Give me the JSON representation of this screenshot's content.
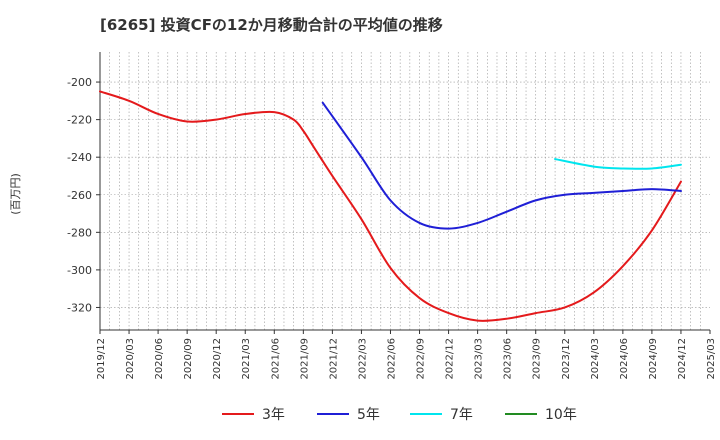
{
  "chart_data": {
    "type": "line",
    "title": "[6265]  投資CFの12か月移動合計の平均値の推移",
    "ylabel": "(百万円)",
    "xlabel": "",
    "ylim": [
      -332,
      -184
    ],
    "yticks": [
      -200,
      -220,
      -240,
      -260,
      -280,
      -300,
      -320
    ],
    "xticks": [
      "2019/12",
      "2020/03",
      "2020/06",
      "2020/09",
      "2020/12",
      "2021/03",
      "2021/06",
      "2021/09",
      "2021/12",
      "2022/03",
      "2022/06",
      "2022/09",
      "2022/12",
      "2023/03",
      "2023/06",
      "2023/09",
      "2023/12",
      "2024/03",
      "2024/06",
      "2024/09",
      "2024/12",
      "2025/03"
    ],
    "grid": true,
    "legend_position": "bottom",
    "series": [
      {
        "name": "3年",
        "color": "#e41a1c",
        "x": [
          "2019/12",
          "2020/03",
          "2020/06",
          "2020/09",
          "2020/12",
          "2021/03",
          "2021/06",
          "2021/08",
          "2021/09",
          "2021/10",
          "2021/12",
          "2022/03",
          "2022/06",
          "2022/09",
          "2022/12",
          "2023/03",
          "2023/06",
          "2023/09",
          "2023/12",
          "2024/03",
          "2024/06",
          "2024/09",
          "2024/12"
        ],
        "values": [
          -205,
          -210,
          -217,
          -221,
          -220,
          -217,
          -216,
          -220,
          -226,
          -234,
          -250,
          -273,
          -299,
          -315,
          -323,
          -327,
          -326,
          -323,
          -320,
          -312,
          -298,
          -279,
          -253
        ]
      },
      {
        "name": "5年",
        "color": "#1f1fd6",
        "x": [
          "2021/11",
          "2022/03",
          "2022/06",
          "2022/09",
          "2022/12",
          "2023/03",
          "2023/06",
          "2023/09",
          "2023/12",
          "2024/03",
          "2024/06",
          "2024/09",
          "2024/12"
        ],
        "values": [
          -211,
          -240,
          -263,
          -275,
          -278,
          -275,
          -269,
          -263,
          -260,
          -259,
          -258,
          -257,
          -258
        ]
      },
      {
        "name": "7年",
        "color": "#00e5ee",
        "x": [
          "2023/11",
          "2024/03",
          "2024/06",
          "2024/09",
          "2024/12"
        ],
        "values": [
          -241,
          -245,
          -246,
          -246,
          -244
        ]
      },
      {
        "name": "10年",
        "color": "#228b22",
        "x": [],
        "values": []
      }
    ]
  }
}
